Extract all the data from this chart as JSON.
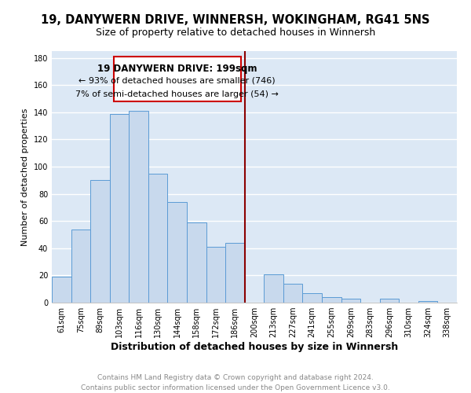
{
  "title": "19, DANYWERN DRIVE, WINNERSH, WOKINGHAM, RG41 5NS",
  "subtitle": "Size of property relative to detached houses in Winnersh",
  "xlabel": "Distribution of detached houses by size in Winnersh",
  "ylabel": "Number of detached properties",
  "categories": [
    "61sqm",
    "75sqm",
    "89sqm",
    "103sqm",
    "116sqm",
    "130sqm",
    "144sqm",
    "158sqm",
    "172sqm",
    "186sqm",
    "200sqm",
    "213sqm",
    "227sqm",
    "241sqm",
    "255sqm",
    "269sqm",
    "283sqm",
    "296sqm",
    "310sqm",
    "324sqm",
    "338sqm"
  ],
  "values": [
    19,
    54,
    90,
    139,
    141,
    95,
    74,
    59,
    41,
    44,
    0,
    21,
    14,
    7,
    4,
    3,
    0,
    3,
    0,
    1,
    0
  ],
  "bar_color": "#c8d9ed",
  "bar_edge_color": "#5b9bd5",
  "background_color": "#dce8f5",
  "grid_color": "#ffffff",
  "vline_color": "#8b0000",
  "annotation_title": "19 DANYWERN DRIVE: 199sqm",
  "annotation_line1": "← 93% of detached houses are smaller (746)",
  "annotation_line2": "7% of semi-detached houses are larger (54) →",
  "annotation_box_color": "#ffffff",
  "annotation_box_edge": "#cc0000",
  "ylim": [
    0,
    185
  ],
  "yticks": [
    0,
    20,
    40,
    60,
    80,
    100,
    120,
    140,
    160,
    180
  ],
  "footer_line1": "Contains HM Land Registry data © Crown copyright and database right 2024.",
  "footer_line2": "Contains public sector information licensed under the Open Government Licence v3.0.",
  "title_fontsize": 10.5,
  "subtitle_fontsize": 9,
  "xlabel_fontsize": 9,
  "ylabel_fontsize": 8,
  "tick_fontsize": 7,
  "footer_fontsize": 6.5,
  "annotation_title_fontsize": 8.5,
  "annotation_body_fontsize": 8
}
